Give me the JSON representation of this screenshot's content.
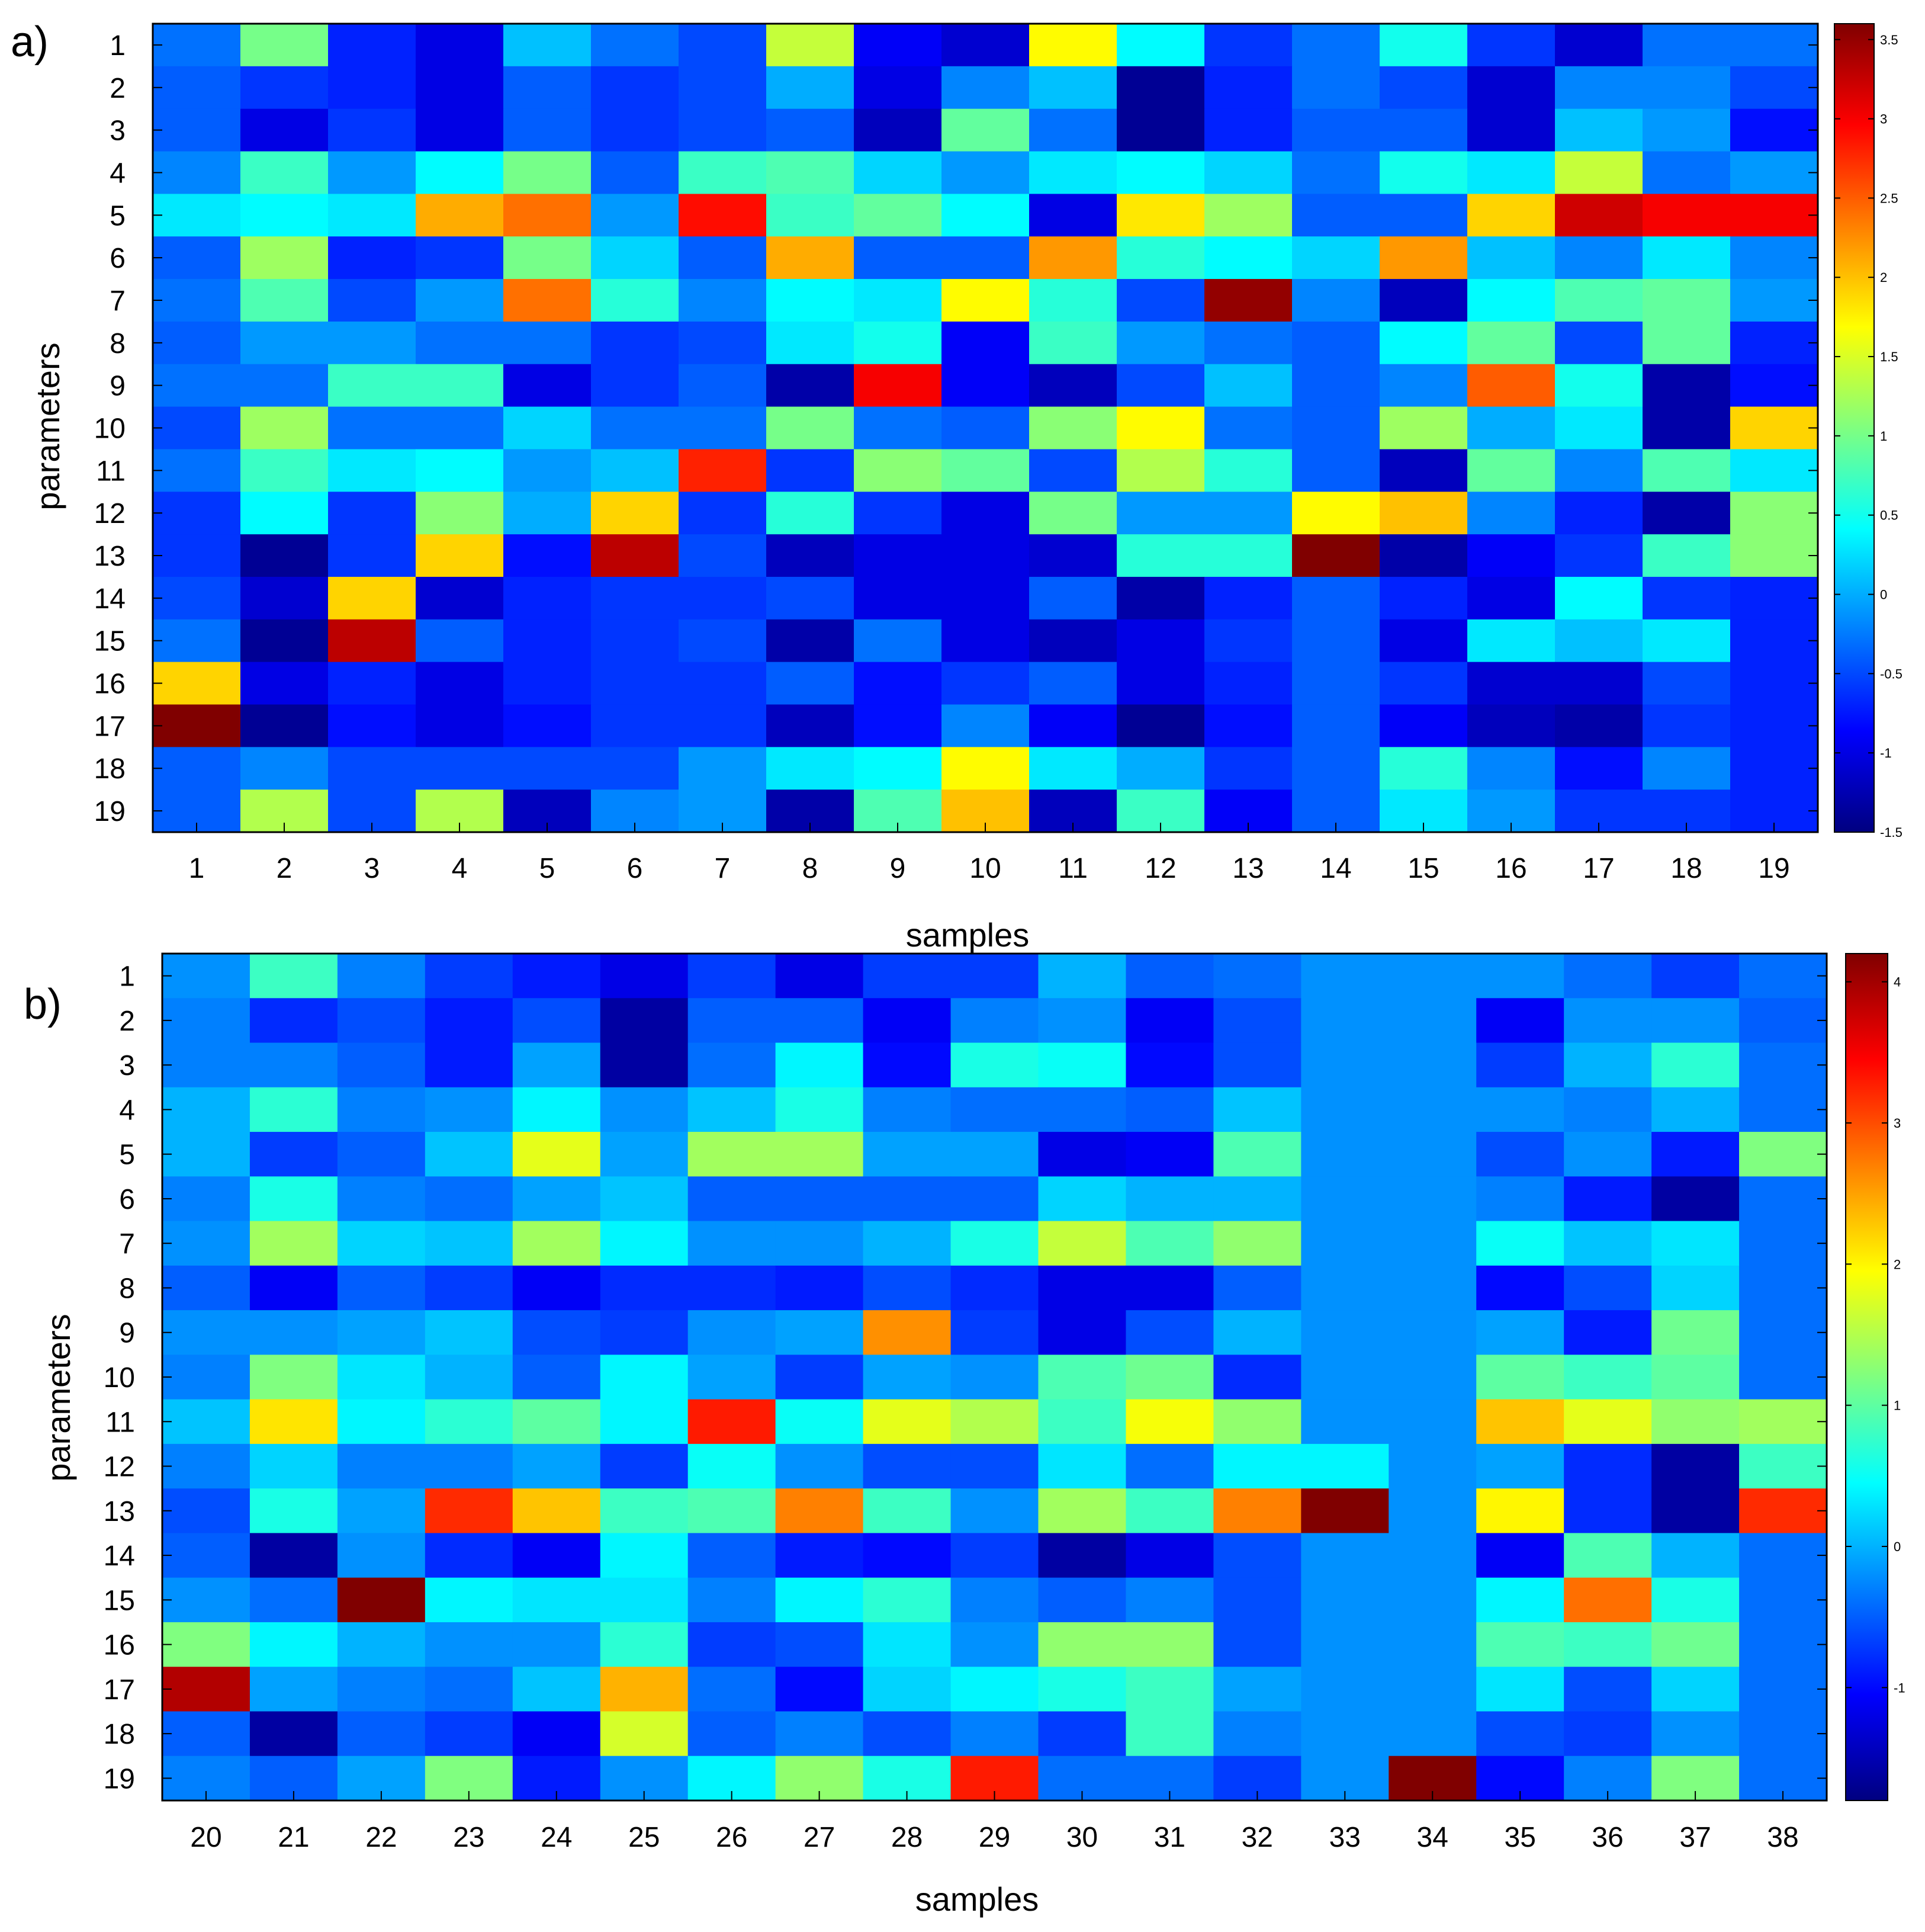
{
  "chart_data": [
    {
      "panel_label": "a)",
      "type": "heatmap",
      "colormap": "jet",
      "xlabel": "samples",
      "ylabel": "parameters",
      "x_categories": [
        "1",
        "2",
        "3",
        "4",
        "5",
        "6",
        "7",
        "8",
        "9",
        "10",
        "11",
        "12",
        "13",
        "14",
        "15",
        "16",
        "17",
        "18",
        "19"
      ],
      "y_categories": [
        "1",
        "2",
        "3",
        "4",
        "5",
        "6",
        "7",
        "8",
        "9",
        "10",
        "11",
        "12",
        "13",
        "14",
        "15",
        "16",
        "17",
        "18",
        "19"
      ],
      "colorbar": {
        "range": [
          -1.5,
          3.6
        ],
        "ticks": [
          -1.5,
          -1,
          -0.5,
          0,
          0.5,
          1,
          1.5,
          2,
          2.5,
          3,
          3.5
        ],
        "tick_labels": [
          "-1.5",
          "-1",
          "-0.5",
          "0",
          "0.5",
          "1",
          "1.5",
          "2",
          "2.5",
          "3",
          "3.5"
        ]
      },
      "values": [
        [
          -0.3,
          1.0,
          -0.7,
          -1.0,
          0.1,
          -0.3,
          -0.5,
          1.4,
          -0.9,
          -1.1,
          1.7,
          0.4,
          -0.6,
          -0.3,
          0.5,
          -0.6,
          -1.1,
          -0.3,
          -0.3
        ],
        [
          -0.4,
          -0.6,
          -0.7,
          -1.0,
          -0.4,
          -0.6,
          -0.5,
          0.0,
          -1.0,
          -0.2,
          0.1,
          -1.4,
          -0.7,
          -0.3,
          -0.5,
          -1.1,
          -0.2,
          -0.2,
          -0.5
        ],
        [
          -0.4,
          -1.0,
          -0.6,
          -1.0,
          -0.4,
          -0.6,
          -0.5,
          -0.4,
          -1.2,
          0.9,
          -0.3,
          -1.4,
          -0.7,
          -0.4,
          -0.4,
          -1.1,
          0.1,
          -0.1,
          -0.8
        ],
        [
          -0.2,
          0.7,
          -0.1,
          0.4,
          1.0,
          -0.4,
          0.7,
          0.8,
          0.2,
          -0.1,
          0.3,
          0.4,
          0.2,
          -0.3,
          0.5,
          0.3,
          1.4,
          -0.3,
          -0.1
        ],
        [
          0.3,
          0.4,
          0.3,
          2.1,
          2.4,
          -0.1,
          2.9,
          0.7,
          0.9,
          0.4,
          -1.0,
          1.8,
          1.2,
          -0.4,
          -0.4,
          1.9,
          3.2,
          3.0,
          3.0
        ],
        [
          -0.4,
          1.2,
          -0.7,
          -0.6,
          1.0,
          0.2,
          -0.4,
          2.1,
          -0.4,
          -0.4,
          2.2,
          0.6,
          0.4,
          0.2,
          2.2,
          0.1,
          -0.2,
          0.3,
          -0.2
        ],
        [
          -0.3,
          0.8,
          -0.5,
          -0.1,
          2.4,
          0.6,
          -0.2,
          0.4,
          0.3,
          1.7,
          0.6,
          -0.5,
          3.5,
          -0.2,
          -1.2,
          0.4,
          0.8,
          0.9,
          -0.1
        ],
        [
          -0.4,
          -0.1,
          -0.1,
          -0.3,
          -0.3,
          -0.6,
          -0.5,
          0.3,
          0.5,
          -0.9,
          0.7,
          -0.1,
          -0.3,
          -0.4,
          0.4,
          0.9,
          -0.5,
          0.9,
          -0.7
        ],
        [
          -0.3,
          -0.3,
          0.7,
          0.7,
          -1.0,
          -0.6,
          -0.4,
          -1.3,
          3.0,
          -0.9,
          -1.2,
          -0.5,
          0.1,
          -0.4,
          -0.2,
          2.5,
          0.5,
          -1.3,
          -0.8
        ],
        [
          -0.5,
          1.2,
          -0.3,
          -0.3,
          0.2,
          -0.3,
          -0.3,
          1.0,
          -0.3,
          -0.4,
          1.1,
          1.7,
          -0.3,
          -0.4,
          1.2,
          0.0,
          0.3,
          -1.3,
          1.9
        ],
        [
          -0.3,
          0.7,
          0.3,
          0.4,
          -0.1,
          0.1,
          2.8,
          -0.6,
          1.1,
          0.9,
          -0.5,
          1.3,
          0.6,
          -0.4,
          -1.2,
          0.9,
          -0.2,
          0.8,
          0.3
        ],
        [
          -0.6,
          0.4,
          -0.6,
          1.1,
          0.0,
          1.9,
          -0.6,
          0.6,
          -0.6,
          -1.0,
          1.0,
          -0.1,
          -0.1,
          1.7,
          2.0,
          -0.2,
          -0.7,
          -1.3,
          1.1
        ],
        [
          -0.6,
          -1.4,
          -0.6,
          1.9,
          -0.8,
          3.3,
          -0.5,
          -1.2,
          -1.0,
          -1.0,
          -1.1,
          0.6,
          0.6,
          3.6,
          -1.3,
          -0.9,
          -0.6,
          0.7,
          1.1
        ],
        [
          -0.5,
          -1.1,
          1.9,
          -1.1,
          -0.7,
          -0.6,
          -0.6,
          -0.5,
          -1.0,
          -1.0,
          -0.4,
          -1.3,
          -0.7,
          -0.4,
          -0.7,
          -1.0,
          0.4,
          -0.6,
          -0.7
        ],
        [
          -0.3,
          -1.4,
          3.3,
          -0.4,
          -0.7,
          -0.6,
          -0.5,
          -1.3,
          -0.3,
          -1.0,
          -1.2,
          -1.0,
          -0.6,
          -0.4,
          -1.0,
          0.3,
          0.1,
          0.3,
          -0.7
        ],
        [
          1.9,
          -1.0,
          -0.7,
          -1.0,
          -0.7,
          -0.6,
          -0.6,
          -0.4,
          -0.8,
          -0.6,
          -0.4,
          -1.0,
          -0.7,
          -0.4,
          -0.6,
          -1.1,
          -1.1,
          -0.5,
          -0.7
        ],
        [
          3.6,
          -1.4,
          -0.8,
          -1.0,
          -0.8,
          -0.6,
          -0.6,
          -1.2,
          -0.8,
          -0.2,
          -0.9,
          -1.4,
          -0.8,
          -0.4,
          -0.9,
          -1.2,
          -1.3,
          -0.6,
          -0.7
        ],
        [
          -0.4,
          -0.2,
          -0.5,
          -0.5,
          -0.5,
          -0.5,
          -0.1,
          0.3,
          0.4,
          1.7,
          0.3,
          0.0,
          -0.6,
          -0.4,
          0.6,
          -0.2,
          -0.8,
          -0.2,
          -0.7
        ],
        [
          -0.4,
          1.3,
          -0.5,
          1.3,
          -1.2,
          -0.2,
          -0.1,
          -1.3,
          0.8,
          2.0,
          -1.2,
          0.7,
          -0.9,
          -0.4,
          0.3,
          -0.1,
          -0.6,
          -0.6,
          -0.7
        ]
      ]
    },
    {
      "panel_label": "b)",
      "type": "heatmap",
      "colormap": "jet",
      "xlabel": "samples",
      "ylabel": "parameters",
      "x_categories": [
        "20",
        "21",
        "22",
        "23",
        "24",
        "25",
        "26",
        "27",
        "28",
        "29",
        "30",
        "31",
        "32",
        "33",
        "34",
        "35",
        "36",
        "37",
        "38"
      ],
      "y_categories": [
        "1",
        "2",
        "3",
        "4",
        "5",
        "6",
        "7",
        "8",
        "9",
        "10",
        "11",
        "12",
        "13",
        "14",
        "15",
        "16",
        "17",
        "18",
        "19"
      ],
      "colorbar": {
        "range": [
          -1.8,
          4.2
        ],
        "ticks": [
          -1,
          0,
          1,
          2,
          3,
          4
        ],
        "tick_labels": [
          "-1",
          "0",
          "1",
          "2",
          "3",
          "4"
        ]
      },
      "values": [
        [
          -0.2,
          0.8,
          -0.3,
          -0.7,
          -0.9,
          -1.2,
          -0.7,
          -1.2,
          -0.7,
          -0.7,
          0.0,
          -0.5,
          -0.4,
          -0.2,
          -0.2,
          -0.2,
          -0.4,
          -0.7,
          -0.4
        ],
        [
          -0.3,
          -0.8,
          -0.6,
          -0.9,
          -0.6,
          -1.6,
          -0.5,
          -0.5,
          -1.1,
          -0.3,
          -0.2,
          -1.1,
          -0.6,
          -0.2,
          -0.2,
          -1.1,
          -0.2,
          -0.2,
          -0.5
        ],
        [
          -0.3,
          -0.3,
          -0.5,
          -0.9,
          -0.1,
          -1.6,
          -0.4,
          0.4,
          -1.0,
          0.6,
          0.5,
          -1.0,
          -0.6,
          -0.2,
          -0.2,
          -0.7,
          0.0,
          0.7,
          -0.4
        ],
        [
          0.0,
          0.7,
          -0.3,
          -0.2,
          0.4,
          -0.2,
          0.1,
          0.6,
          -0.3,
          -0.4,
          -0.4,
          -0.5,
          0.1,
          -0.2,
          -0.2,
          -0.2,
          -0.3,
          0.0,
          -0.4
        ],
        [
          0.0,
          -0.7,
          -0.5,
          0.1,
          1.8,
          -0.1,
          1.4,
          1.4,
          -0.1,
          -0.1,
          -1.2,
          -1.1,
          0.9,
          -0.2,
          -0.2,
          -0.6,
          -0.2,
          -0.9,
          1.2
        ],
        [
          -0.3,
          0.6,
          -0.3,
          -0.4,
          -0.1,
          0.1,
          -0.5,
          -0.5,
          -0.5,
          -0.5,
          0.2,
          0.0,
          0.0,
          -0.2,
          -0.2,
          -0.3,
          -0.9,
          -1.6,
          -0.4
        ],
        [
          -0.2,
          1.4,
          0.2,
          0.1,
          1.4,
          0.4,
          -0.2,
          -0.2,
          0.0,
          0.6,
          1.6,
          0.9,
          1.3,
          -0.2,
          -0.2,
          0.5,
          0.1,
          0.3,
          -0.4
        ],
        [
          -0.5,
          -1.1,
          -0.5,
          -0.7,
          -1.1,
          -0.8,
          -0.8,
          -0.9,
          -0.6,
          -0.8,
          -1.2,
          -1.2,
          -0.5,
          -0.2,
          -0.2,
          -1.0,
          -0.6,
          0.2,
          -0.4
        ],
        [
          -0.2,
          -0.2,
          -0.1,
          0.1,
          -0.6,
          -0.7,
          -0.2,
          -0.1,
          2.6,
          -0.7,
          -1.2,
          -0.6,
          0.0,
          -0.2,
          -0.2,
          -0.1,
          -0.9,
          1.1,
          -0.4
        ],
        [
          -0.3,
          1.2,
          0.3,
          0.0,
          -0.5,
          0.4,
          -0.1,
          -0.7,
          -0.1,
          -0.2,
          0.9,
          1.1,
          -0.8,
          -0.2,
          -0.2,
          1.0,
          0.8,
          1.0,
          -0.4
        ],
        [
          0.1,
          2.1,
          0.4,
          0.7,
          1.0,
          0.4,
          3.3,
          0.5,
          1.8,
          1.5,
          0.8,
          1.9,
          1.3,
          -0.2,
          -0.2,
          2.3,
          1.8,
          1.3,
          1.4
        ],
        [
          -0.3,
          0.2,
          -0.3,
          -0.3,
          -0.1,
          -0.7,
          0.5,
          -0.2,
          -0.6,
          -0.6,
          0.3,
          -0.4,
          0.4,
          0.4,
          -0.2,
          -0.1,
          -0.8,
          -1.6,
          0.8
        ],
        [
          -0.6,
          0.6,
          -0.1,
          3.2,
          2.3,
          0.8,
          0.9,
          2.7,
          0.8,
          -0.2,
          1.4,
          0.8,
          2.7,
          4.2,
          -0.2,
          2.0,
          -0.8,
          -1.6,
          3.2
        ],
        [
          -0.5,
          -1.6,
          -0.2,
          -0.8,
          -1.1,
          0.4,
          -0.5,
          -0.9,
          -1.0,
          -0.7,
          -1.6,
          -1.2,
          -0.6,
          -0.2,
          -0.2,
          -1.1,
          0.9,
          0.0,
          -0.4
        ],
        [
          -0.2,
          -0.4,
          4.2,
          0.4,
          0.3,
          0.3,
          -0.3,
          0.4,
          0.7,
          -0.3,
          -0.5,
          -0.3,
          -0.6,
          -0.2,
          -0.2,
          0.4,
          2.8,
          0.6,
          -0.4
        ],
        [
          1.2,
          0.4,
          0.0,
          -0.2,
          -0.2,
          0.7,
          -0.7,
          -0.6,
          0.3,
          -0.2,
          1.3,
          1.3,
          -0.6,
          -0.2,
          -0.2,
          0.9,
          0.8,
          1.1,
          -0.4
        ],
        [
          3.9,
          -0.1,
          -0.3,
          -0.4,
          0.1,
          2.4,
          -0.4,
          -1.0,
          0.2,
          0.4,
          0.6,
          0.8,
          -0.1,
          -0.2,
          -0.2,
          0.3,
          -0.6,
          0.2,
          -0.4
        ],
        [
          -0.5,
          -1.6,
          -0.5,
          -0.7,
          -1.1,
          1.7,
          -0.5,
          -0.3,
          -0.6,
          -0.3,
          -0.7,
          0.8,
          -0.3,
          -0.2,
          -0.2,
          -0.6,
          -0.7,
          -0.2,
          -0.4
        ],
        [
          -0.3,
          -0.5,
          -0.1,
          1.2,
          -0.9,
          -0.2,
          0.4,
          1.3,
          0.6,
          3.3,
          -0.4,
          -0.4,
          -0.7,
          -0.2,
          4.2,
          -1.0,
          -0.3,
          1.2,
          -0.4
        ]
      ]
    }
  ]
}
